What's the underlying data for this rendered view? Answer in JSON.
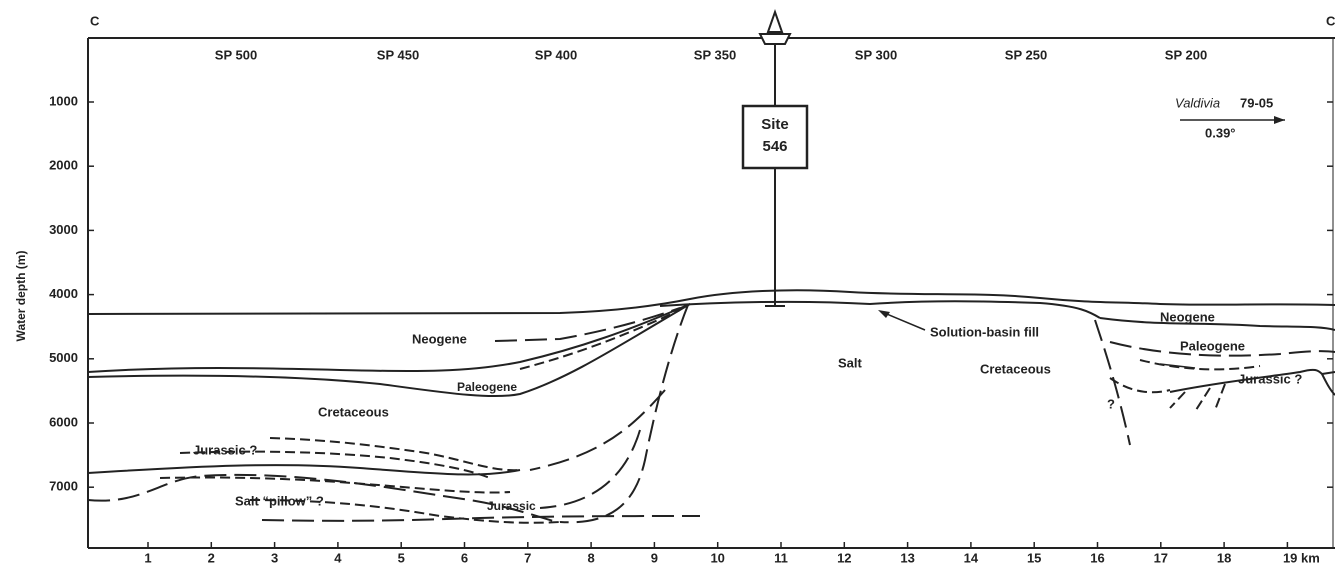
{
  "section_labels": {
    "left": "C",
    "right": "C"
  },
  "shotpoints": [
    "SP 500",
    "SP 450",
    "SP 400",
    "SP 350",
    "SP 300",
    "SP 250",
    "SP 200"
  ],
  "y_axis": {
    "title": "Water depth (m)",
    "ticks": [
      "1000",
      "2000",
      "3000",
      "4000",
      "5000",
      "6000",
      "7000"
    ]
  },
  "x_axis": {
    "ticks": [
      "1",
      "2",
      "3",
      "4",
      "5",
      "6",
      "7",
      "8",
      "9",
      "10",
      "11",
      "12",
      "13",
      "14",
      "15",
      "16",
      "17",
      "18",
      "19 km"
    ]
  },
  "site": {
    "line1": "Site",
    "line2": "546"
  },
  "profile": {
    "ship": "Valdivia",
    "line": "79-05",
    "slope": "0.39°"
  },
  "units": {
    "neogene_left": "Neogene",
    "paleogene_left": "Paleogene",
    "cretaceous_left": "Cretaceous",
    "jurassic_q_left": "Jurassic ?",
    "salt_pillow": "Salt “pillow” ?",
    "jurassic_left": "Jurassic",
    "salt": "Salt",
    "solution_fill": "Solution-basin fill",
    "neogene_right": "Neogene",
    "paleogene_right": "Paleogene",
    "cretaceous_right": "Cretaceous",
    "jurassic_q_right": "Jurassic ?",
    "question": "?"
  }
}
